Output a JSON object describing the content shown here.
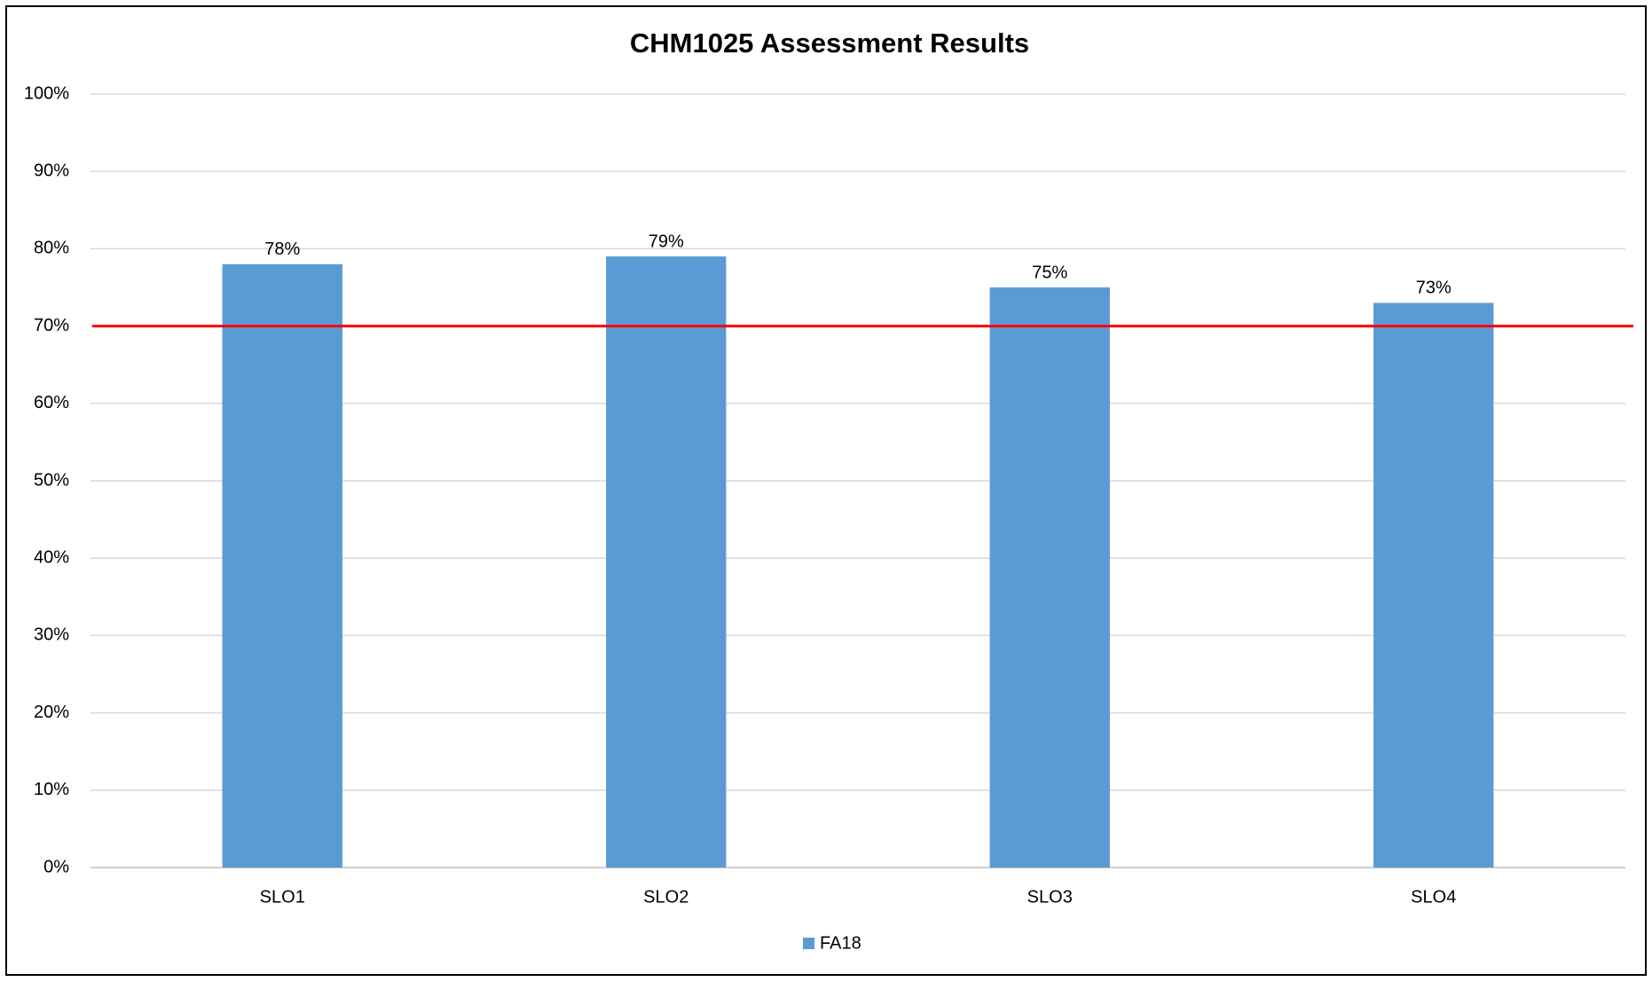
{
  "chart_data": {
    "type": "bar",
    "title": "CHM1025 Assessment Results",
    "categories": [
      "SLO1",
      "SLO2",
      "SLO3",
      "SLO4"
    ],
    "series": [
      {
        "name": "FA18",
        "color": "#5b9bd5",
        "values": [
          78,
          79,
          75,
          73
        ],
        "value_labels": [
          "78%",
          "79%",
          "75%",
          "73%"
        ]
      }
    ],
    "ylim": [
      0,
      100
    ],
    "yticks": [
      {
        "value": 0,
        "label": "0%"
      },
      {
        "value": 10,
        "label": "10%"
      },
      {
        "value": 20,
        "label": "20%"
      },
      {
        "value": 30,
        "label": "30%"
      },
      {
        "value": 40,
        "label": "40%"
      },
      {
        "value": 50,
        "label": "50%"
      },
      {
        "value": 60,
        "label": "60%"
      },
      {
        "value": 70,
        "label": "70%"
      },
      {
        "value": 80,
        "label": "80%"
      },
      {
        "value": 90,
        "label": "90%"
      },
      {
        "value": 100,
        "label": "100%"
      }
    ],
    "grid": true,
    "reference_line": {
      "value": 70,
      "color": "#ff0000"
    },
    "legend": "bottom"
  }
}
